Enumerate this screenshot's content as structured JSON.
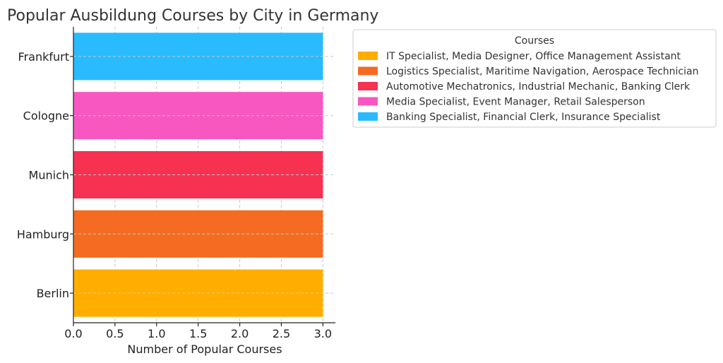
{
  "chart_data": {
    "type": "bar",
    "orientation": "horizontal",
    "title": "Popular Ausbildung Courses by City in Germany",
    "xlabel": "Number of Popular Courses",
    "ylabel": "",
    "categories": [
      "Berlin",
      "Hamburg",
      "Munich",
      "Cologne",
      "Frankfurt"
    ],
    "values": [
      3,
      3,
      3,
      3,
      3
    ],
    "colors": [
      "#FFAE00",
      "#F56B22",
      "#F73152",
      "#F857C2",
      "#29BBFD"
    ],
    "xlim": [
      0,
      3.15
    ],
    "xticks": [
      "0.0",
      "0.5",
      "1.0",
      "1.5",
      "2.0",
      "2.5",
      "3.0"
    ],
    "grid": true,
    "legend": {
      "title": "Courses",
      "placement": "outside-top-right",
      "entries": [
        "IT Specialist, Media Designer, Office Management Assistant",
        "Logistics Specialist, Maritime Navigation, Aerospace Technician",
        "Automotive Mechatronics, Industrial Mechanic, Banking Clerk",
        "Media Specialist, Event Manager, Retail Salesperson",
        "Banking Specialist, Financial Clerk, Insurance Specialist"
      ]
    }
  }
}
